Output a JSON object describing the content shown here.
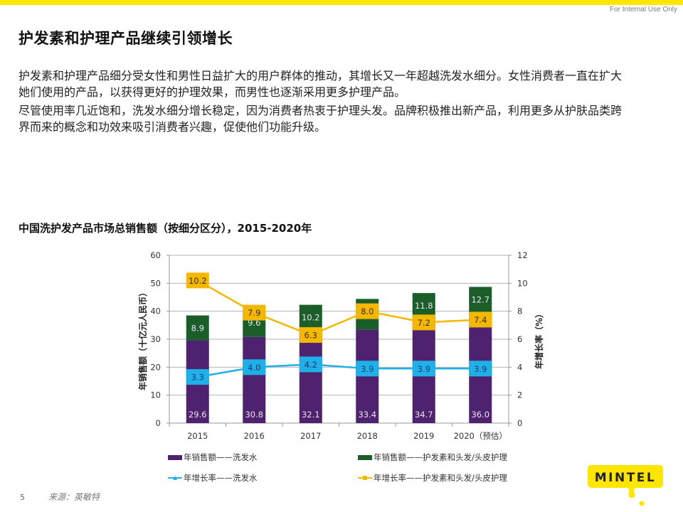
{
  "header": {
    "internal_label": "For Internal Use Only",
    "title": "护发素和护理产品继续引领增长"
  },
  "body": {
    "paragraphs": [
      "护发素和护理产品细分受女性和男性日益扩大的用户群体的推动，其增长又一年超越洗发水细分。女性消费者一直在扩大她们使用的产品，以获得更好的护理效果，而男性也逐渐采用更多护理产品。",
      "尽管使用率几近饱和，洗发水细分增长稳定，因为消费者热衷于护理头发。品牌积极推出新产品，利用更多从护肤品类跨界而来的概念和功效来吸引消费者兴趣，促使他们功能升级。"
    ]
  },
  "chart_data": {
    "type": "bar",
    "title": "中国洗护发产品市场总销售额（按细分区分），2015-2020年",
    "categories": [
      "2015",
      "2016",
      "2017",
      "2018",
      "2019",
      "2020（预估）"
    ],
    "ylabel": "年销售额（十亿元人民币）",
    "y2label": "年增长率（%）",
    "ylim": [
      0,
      60
    ],
    "y2lim": [
      0,
      12
    ],
    "yticks": [
      "0",
      "10",
      "20",
      "30",
      "40",
      "50",
      "60"
    ],
    "y2ticks": [
      "0",
      "2",
      "4",
      "6",
      "8",
      "10",
      "12"
    ],
    "grid": true,
    "stacked": true,
    "series": [
      {
        "name": "年销售额——洗发水",
        "kind": "bar",
        "axis": "left",
        "color": "#4f2270",
        "values": [
          29.6,
          30.8,
          32.1,
          33.4,
          34.7,
          36.0
        ],
        "labels": [
          "29.6",
          "30.8",
          "32.1",
          "33.4",
          "34.7",
          "36.0"
        ]
      },
      {
        "name": "年销售额——护发素和头发/头皮护理",
        "kind": "bar",
        "axis": "left",
        "color": "#1c5e2a",
        "values": [
          8.9,
          9.6,
          10.2,
          11.0,
          11.8,
          12.7
        ],
        "labels": [
          "8.9",
          "9.6",
          "10.2",
          "11.0",
          "11.8",
          "12.7"
        ]
      },
      {
        "name": "年增长率——洗发水",
        "kind": "line",
        "axis": "right",
        "color": "#1fb0e8",
        "values": [
          3.3,
          4.0,
          4.2,
          3.9,
          3.9,
          3.9
        ],
        "labels": [
          "3.3",
          "4.0",
          "4.2",
          "3.9",
          "3.9",
          "3.9"
        ]
      },
      {
        "name": "年增长率——护发素和头发/头皮护理",
        "kind": "line",
        "axis": "right",
        "color": "#f5b800",
        "values": [
          10.2,
          7.9,
          6.3,
          8.0,
          7.2,
          7.4
        ],
        "labels": [
          "10.2",
          "7.9",
          "6.3",
          "8.0",
          "7.2",
          "7.4"
        ]
      }
    ],
    "legend_position": "bottom"
  },
  "legend": [
    {
      "label": "年销售额——洗发水",
      "color": "#4f2270",
      "marker": "square"
    },
    {
      "label": "年销售额——护发素和头发/头皮护理",
      "color": "#1c5e2a",
      "marker": "square"
    },
    {
      "label": "年增长率——洗发水",
      "color": "#1fb0e8",
      "marker": "triangle-line"
    },
    {
      "label": "年增长率——护发素和头发/头皮护理",
      "color": "#f5b800",
      "marker": "square-line"
    }
  ],
  "footer": {
    "page_number": "5",
    "source": "来源：英敏特",
    "logo_text": "MINTEL"
  },
  "colors": {
    "brand_yellow": "#ffe600"
  }
}
